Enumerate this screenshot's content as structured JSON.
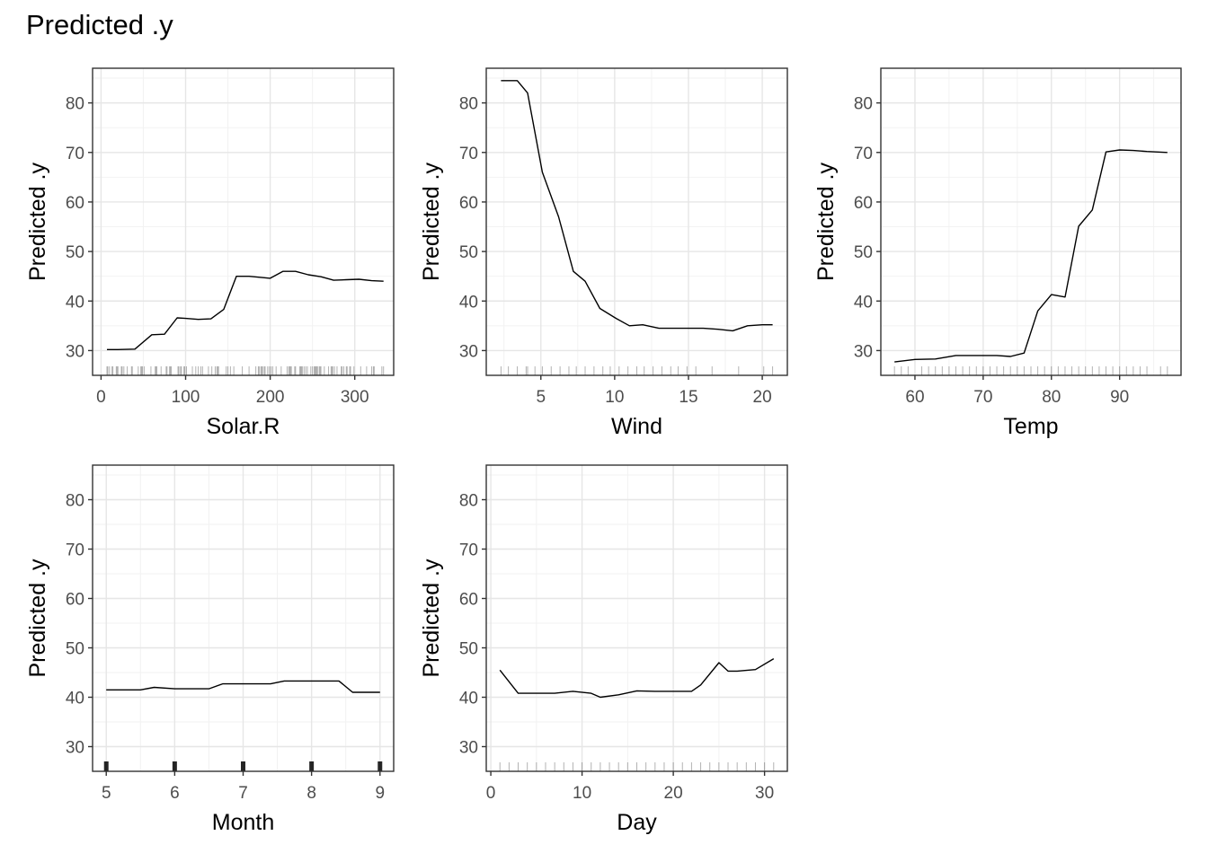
{
  "title": "Predicted .y",
  "chart_data": [
    {
      "type": "line",
      "xlabel": "Solar.R",
      "ylabel": "Predicted .y",
      "xlim": [
        -10,
        346
      ],
      "ylim": [
        25,
        87
      ],
      "xticks": [
        0,
        100,
        200,
        300
      ],
      "yticks": [
        30,
        40,
        50,
        60,
        70,
        80
      ],
      "grid": true,
      "x": [
        7,
        20,
        40,
        60,
        75,
        90,
        100,
        115,
        130,
        145,
        160,
        175,
        200,
        215,
        230,
        245,
        260,
        275,
        290,
        305,
        320,
        334
      ],
      "y": [
        30.2,
        30.2,
        30.3,
        33.2,
        33.3,
        36.6,
        36.5,
        36.3,
        36.4,
        38.3,
        45.0,
        45.0,
        44.6,
        46.0,
        46.0,
        45.3,
        44.9,
        44.2,
        44.3,
        44.4,
        44.1,
        44.0
      ],
      "rug": [
        7,
        8,
        10,
        13,
        14,
        18,
        19,
        20,
        24,
        25,
        27,
        31,
        36,
        37,
        44,
        47,
        48,
        49,
        51,
        59,
        64,
        65,
        66,
        71,
        77,
        78,
        81,
        82,
        83,
        91,
        92,
        94,
        95,
        98,
        99,
        101,
        108,
        112,
        115,
        118,
        120,
        127,
        131,
        135,
        137,
        138,
        139,
        148,
        150,
        153,
        157,
        167,
        175,
        183,
        186,
        187,
        189,
        190,
        191,
        193,
        194,
        197,
        199,
        201,
        203,
        207,
        213,
        220,
        222,
        223,
        224,
        225,
        229,
        230,
        235,
        236,
        237,
        238,
        240,
        242,
        244,
        248,
        250,
        252,
        253,
        254,
        255,
        256,
        258,
        259,
        260,
        264,
        269,
        272,
        273,
        274,
        276,
        279,
        284,
        285,
        287,
        290,
        291,
        294,
        295,
        299,
        307,
        314,
        320,
        322,
        323,
        332,
        334
      ]
    },
    {
      "type": "line",
      "xlabel": "Wind",
      "ylabel": "Predicted .y",
      "xlim": [
        1.3,
        21.7
      ],
      "ylim": [
        25,
        87
      ],
      "xticks": [
        5,
        10,
        15,
        20
      ],
      "yticks": [
        30,
        40,
        50,
        60,
        70,
        80
      ],
      "grid": true,
      "x": [
        2.3,
        3.4,
        4.1,
        5.1,
        6.2,
        7.2,
        8.0,
        9.0,
        10.1,
        11.0,
        11.9,
        13.0,
        14.0,
        15.0,
        16.0,
        17.0,
        18.0,
        19.0,
        20.0,
        20.7
      ],
      "y": [
        84.5,
        84.5,
        82.0,
        66.0,
        57.0,
        46.0,
        44.0,
        38.5,
        36.5,
        35.0,
        35.2,
        34.5,
        34.5,
        34.5,
        34.5,
        34.3,
        34.0,
        35.0,
        35.2,
        35.2
      ],
      "rug": [
        2.3,
        2.8,
        3.4,
        4.0,
        4.1,
        4.6,
        5.1,
        5.7,
        6.3,
        6.9,
        7.4,
        8.0,
        8.6,
        9.2,
        9.7,
        10.3,
        10.9,
        11.5,
        12.0,
        12.6,
        13.2,
        13.8,
        14.3,
        14.9,
        15.5,
        16.6,
        18.4,
        20.1,
        20.7
      ]
    },
    {
      "type": "line",
      "xlabel": "Temp",
      "ylabel": "Predicted .y",
      "xlim": [
        55,
        99
      ],
      "ylim": [
        25,
        87
      ],
      "xticks": [
        60,
        70,
        80,
        90
      ],
      "yticks": [
        30,
        40,
        50,
        60,
        70,
        80
      ],
      "grid": true,
      "x": [
        57,
        60,
        63,
        66,
        69,
        72,
        74,
        76,
        78,
        80,
        82,
        84,
        86,
        88,
        90,
        92,
        94,
        97
      ],
      "y": [
        27.7,
        28.2,
        28.3,
        29.0,
        29.0,
        29.0,
        28.8,
        29.5,
        38.0,
        41.3,
        40.8,
        55.1,
        58.4,
        70.1,
        70.5,
        70.4,
        70.2,
        70.0
      ],
      "rug": [
        57,
        58,
        59,
        61,
        62,
        63,
        64,
        65,
        66,
        67,
        68,
        69,
        70,
        71,
        72,
        73,
        74,
        75,
        76,
        77,
        78,
        79,
        80,
        81,
        82,
        83,
        84,
        85,
        86,
        87,
        88,
        89,
        90,
        91,
        92,
        93,
        94,
        96,
        97
      ]
    },
    {
      "type": "line",
      "xlabel": "Month",
      "ylabel": "Predicted .y",
      "xlim": [
        4.8,
        9.2
      ],
      "ylim": [
        25,
        87
      ],
      "xticks": [
        5,
        6,
        7,
        8,
        9
      ],
      "yticks": [
        30,
        40,
        50,
        60,
        70,
        80
      ],
      "grid": true,
      "x": [
        5.0,
        5.5,
        5.7,
        6.0,
        6.5,
        6.7,
        7.0,
        7.4,
        7.6,
        8.0,
        8.4,
        8.6,
        9.0
      ],
      "y": [
        41.5,
        41.5,
        42.0,
        41.7,
        41.7,
        42.7,
        42.7,
        42.7,
        43.3,
        43.3,
        43.3,
        41.0,
        41.0
      ],
      "rug": [
        5,
        6,
        7,
        8,
        9
      ]
    },
    {
      "type": "line",
      "xlabel": "Day",
      "ylabel": "Predicted .y",
      "xlim": [
        -0.5,
        32.5
      ],
      "ylim": [
        25,
        87
      ],
      "xticks": [
        0,
        10,
        20,
        30
      ],
      "yticks": [
        30,
        40,
        50,
        60,
        70,
        80
      ],
      "grid": true,
      "x": [
        1,
        3,
        5,
        7,
        9,
        11,
        12,
        14,
        16,
        18,
        20,
        22,
        23,
        25,
        26,
        27,
        29,
        31
      ],
      "y": [
        45.5,
        40.8,
        40.8,
        40.8,
        41.2,
        40.8,
        40.0,
        40.5,
        41.3,
        41.2,
        41.2,
        41.2,
        42.5,
        47.0,
        45.3,
        45.3,
        45.6,
        47.8
      ],
      "rug": [
        1,
        2,
        3,
        4,
        5,
        6,
        7,
        8,
        9,
        10,
        11,
        12,
        13,
        14,
        15,
        16,
        17,
        18,
        19,
        20,
        21,
        22,
        23,
        24,
        25,
        26,
        27,
        28,
        29,
        30,
        31
      ]
    }
  ]
}
